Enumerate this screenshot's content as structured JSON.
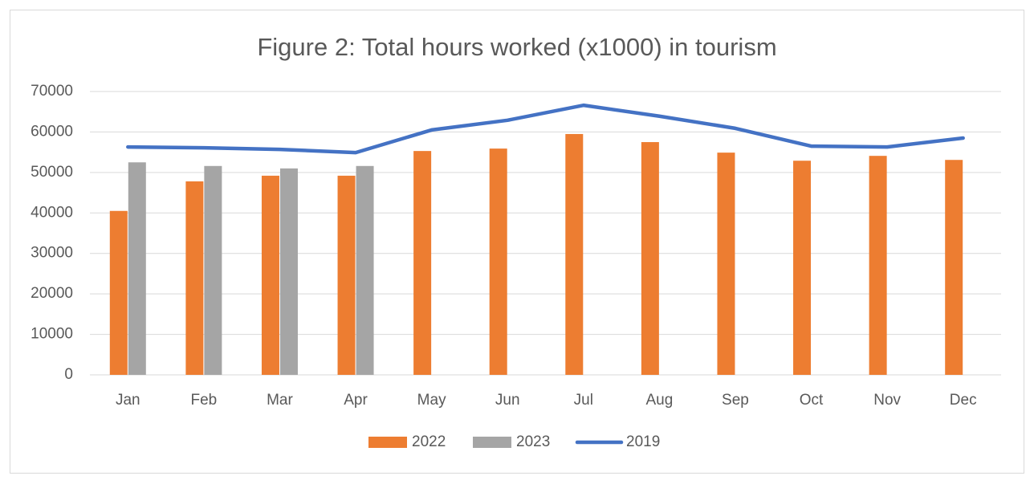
{
  "chart_data": {
    "type": "bar",
    "title": "Figure 2: Total hours worked (x1000) in tourism",
    "categories": [
      "Jan",
      "Feb",
      "Mar",
      "Apr",
      "May",
      "Jun",
      "Jul",
      "Aug",
      "Sep",
      "Oct",
      "Nov",
      "Dec"
    ],
    "series": [
      {
        "name": "2022",
        "type": "bar",
        "color": "#ed7d31",
        "values": [
          40500,
          47800,
          49200,
          49200,
          55300,
          55900,
          59500,
          57500,
          54900,
          52900,
          54100,
          53100
        ]
      },
      {
        "name": "2023",
        "type": "bar",
        "color": "#a5a5a5",
        "values": [
          52500,
          51600,
          51000,
          51600,
          null,
          null,
          null,
          null,
          null,
          null,
          null,
          null
        ]
      },
      {
        "name": "2019",
        "type": "line",
        "color": "#4472c4",
        "values": [
          56300,
          56100,
          55700,
          54900,
          60500,
          62900,
          66600,
          63900,
          60900,
          56500,
          56300,
          58500
        ]
      }
    ],
    "ylim": [
      0,
      70000
    ],
    "yticks": [
      0,
      10000,
      20000,
      30000,
      40000,
      50000,
      60000,
      70000
    ],
    "grid": true,
    "legend": "bottom"
  }
}
